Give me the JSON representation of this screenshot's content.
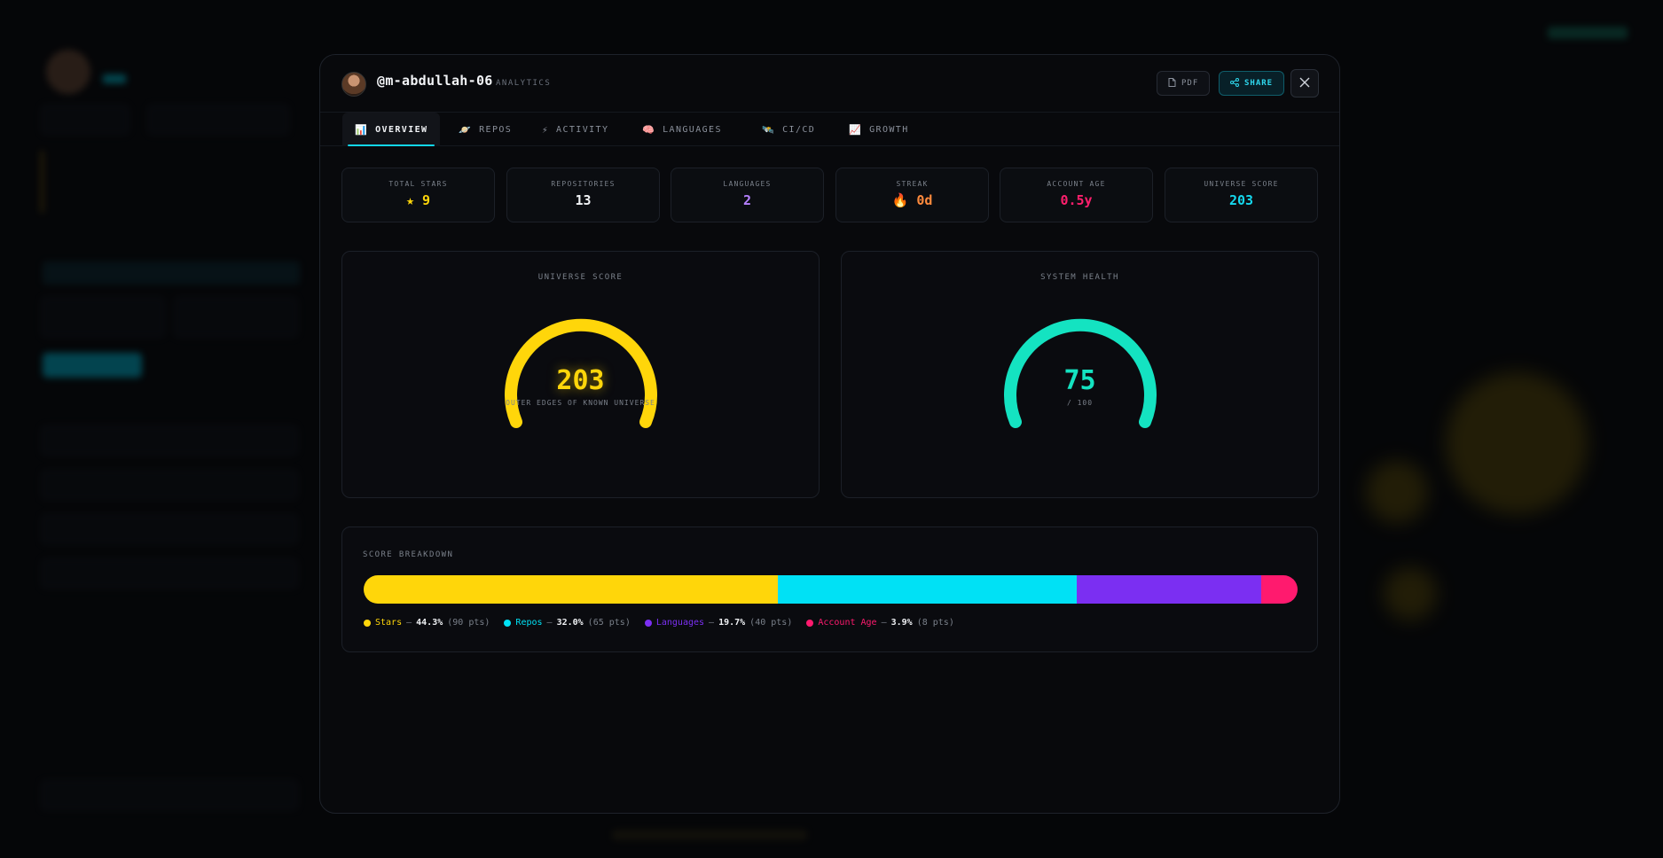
{
  "profile": {
    "handle": "@m-abdullah-06",
    "subtitle": "ANALYTICS"
  },
  "header": {
    "pdf_label": "PDF",
    "share_label": "SHARE",
    "close_icon": "close-icon"
  },
  "tabs": [
    {
      "label": "OVERVIEW",
      "icon": "📊",
      "active": true
    },
    {
      "label": "REPOS",
      "icon": "🪐",
      "active": false
    },
    {
      "label": "ACTIVITY",
      "icon": "⚡",
      "active": false
    },
    {
      "label": "LANGUAGES",
      "icon": "🧠",
      "active": false
    },
    {
      "label": "CI/CD",
      "icon": "🛰️",
      "active": false
    },
    {
      "label": "GROWTH",
      "icon": "📈",
      "active": false
    }
  ],
  "stats": [
    {
      "label": "TOTAL STARS",
      "value": "★ 9",
      "color": "#ffd60a"
    },
    {
      "label": "REPOSITORIES",
      "value": "13",
      "color": "#f0f2f5"
    },
    {
      "label": "LANGUAGES",
      "value": "2",
      "color": "#b580ff"
    },
    {
      "label": "STREAK",
      "value": "🔥 0d",
      "color": "#ff8a3d"
    },
    {
      "label": "ACCOUNT AGE",
      "value": "0.5y",
      "color": "#ff1f6d"
    },
    {
      "label": "UNIVERSE SCORE",
      "value": "203",
      "color": "#15d8ee"
    }
  ],
  "universe_gauge": {
    "title": "UNIVERSE SCORE",
    "value": "203",
    "subtitle": "OUTER EDGES OF KNOWN UNIVERSE",
    "color": "#ffd60a"
  },
  "health_gauge": {
    "title": "SYSTEM HEALTH",
    "value": "75",
    "subtitle": "/ 100",
    "color": "#14e3c1"
  },
  "breakdown": {
    "title": "SCORE BREAKDOWN",
    "items": [
      {
        "name": "Stars",
        "percent": 44.3,
        "pct_label": "44.3%",
        "pts_label": "(90 pts)",
        "color": "#ffd60a"
      },
      {
        "name": "Repos",
        "percent": 32.0,
        "pct_label": "32.0%",
        "pts_label": "(65 pts)",
        "color": "#00e1f5"
      },
      {
        "name": "Languages",
        "percent": 19.7,
        "pct_label": "19.7%",
        "pts_label": "(40 pts)",
        "color": "#7b2ff2"
      },
      {
        "name": "Account Age",
        "percent": 3.9,
        "pct_label": "3.9%",
        "pts_label": "(8 pts)",
        "color": "#ff1a6e"
      }
    ]
  }
}
